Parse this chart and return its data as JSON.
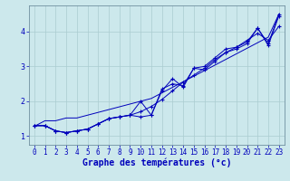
{
  "xlabel": "Graphe des températures (°c)",
  "background_color": "#cce8ec",
  "line_color": "#0000bb",
  "xlim": [
    -0.5,
    23.5
  ],
  "ylim": [
    0.75,
    4.75
  ],
  "x": [
    0,
    1,
    2,
    3,
    4,
    5,
    6,
    7,
    8,
    9,
    10,
    11,
    12,
    13,
    14,
    15,
    16,
    17,
    18,
    19,
    20,
    21,
    22,
    23
  ],
  "line1": [
    1.3,
    1.3,
    1.15,
    1.1,
    1.15,
    1.2,
    1.35,
    1.5,
    1.55,
    1.6,
    1.7,
    1.85,
    2.05,
    2.3,
    2.55,
    2.75,
    2.95,
    3.2,
    3.4,
    3.55,
    3.75,
    3.95,
    3.75,
    4.15
  ],
  "line2": [
    1.3,
    1.3,
    1.15,
    1.1,
    1.15,
    1.2,
    1.35,
    1.5,
    1.55,
    1.6,
    1.55,
    1.6,
    2.35,
    2.5,
    2.45,
    2.95,
    3.0,
    3.25,
    3.5,
    3.55,
    3.7,
    4.1,
    3.65,
    4.5
  ],
  "line3": [
    1.3,
    1.3,
    1.15,
    1.1,
    1.15,
    1.2,
    1.35,
    1.5,
    1.55,
    1.6,
    2.0,
    1.6,
    2.3,
    2.65,
    2.4,
    2.95,
    2.9,
    3.15,
    3.4,
    3.5,
    3.65,
    4.1,
    3.6,
    4.45
  ],
  "trend": [
    1.28,
    1.44,
    1.44,
    1.52,
    1.52,
    1.6,
    1.68,
    1.76,
    1.84,
    1.92,
    2.0,
    2.08,
    2.24,
    2.4,
    2.56,
    2.72,
    2.88,
    3.04,
    3.2,
    3.36,
    3.52,
    3.68,
    3.84,
    4.5
  ],
  "grid_color": "#aaccd0",
  "tick_fontsize": 5.5,
  "xlabel_fontsize": 7,
  "yticks": [
    1,
    2,
    3,
    4
  ],
  "xticks": [
    0,
    1,
    2,
    3,
    4,
    5,
    6,
    7,
    8,
    9,
    10,
    11,
    12,
    13,
    14,
    15,
    16,
    17,
    18,
    19,
    20,
    21,
    22,
    23
  ]
}
